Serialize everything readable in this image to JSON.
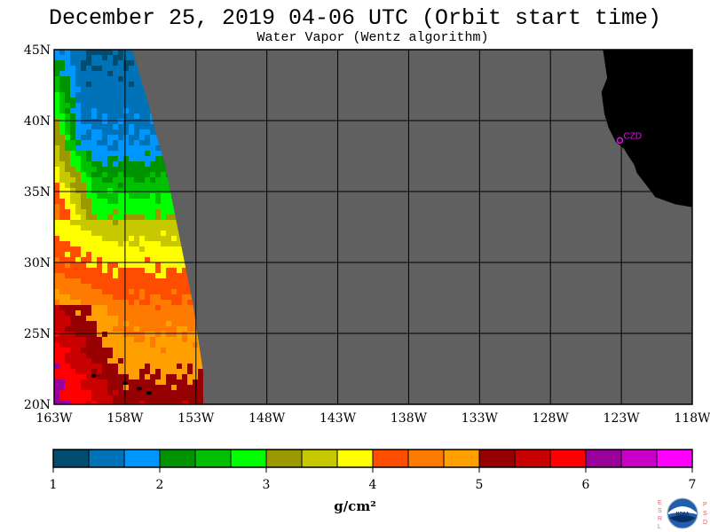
{
  "title": "December 25, 2019  04-06 UTC  (Orbit start time)",
  "subtitle": "Water Vapor (Wentz algorithm)",
  "station": {
    "label": "CZD",
    "color": "#ff00ff",
    "lon": -123.1,
    "lat": 38.6
  },
  "map": {
    "lon_range": [
      -163,
      -118
    ],
    "lat_range": [
      20,
      45
    ],
    "lat_ticks": [
      {
        "v": 45,
        "label": "45N"
      },
      {
        "v": 40,
        "label": "40N"
      },
      {
        "v": 35,
        "label": "35N"
      },
      {
        "v": 30,
        "label": "30N"
      },
      {
        "v": 25,
        "label": "25N"
      },
      {
        "v": 20,
        "label": "20N"
      }
    ],
    "lon_ticks": [
      {
        "v": -163,
        "label": "163W"
      },
      {
        "v": -158,
        "label": "158W"
      },
      {
        "v": -153,
        "label": "153W"
      },
      {
        "v": -148,
        "label": "148W"
      },
      {
        "v": -143,
        "label": "143W"
      },
      {
        "v": -138,
        "label": "138W"
      },
      {
        "v": -133,
        "label": "133W"
      },
      {
        "v": -128,
        "label": "128W"
      },
      {
        "v": -123,
        "label": "123W"
      },
      {
        "v": -118,
        "label": "118W"
      }
    ],
    "grid": true,
    "no_data_color": "#606060",
    "land_color": "#000000",
    "data_swath": [
      {
        "lat": 45,
        "lon_east": -157.5
      },
      {
        "lat": 43,
        "lon_east": -156.9
      },
      {
        "lat": 41,
        "lon_east": -156.3
      },
      {
        "lat": 39,
        "lon_east": -155.8
      },
      {
        "lat": 37,
        "lon_east": -155.2
      },
      {
        "lat": 35,
        "lon_east": -154.8
      },
      {
        "lat": 33,
        "lon_east": -154.4
      },
      {
        "lat": 31,
        "lon_east": -154.0
      },
      {
        "lat": 29,
        "lon_east": -153.6
      },
      {
        "lat": 27,
        "lon_east": -153.2
      },
      {
        "lat": 25,
        "lon_east": -152.9
      },
      {
        "lat": 23,
        "lon_east": -152.6
      },
      {
        "lat": 21,
        "lon_east": -152.3
      },
      {
        "lat": 20,
        "lon_east": -152.2
      }
    ],
    "water_vapor_bands_g_cm2": [
      {
        "lat": [
          43,
          45
        ],
        "lon": [
          -163,
          -162
        ],
        "v": 1.8
      },
      {
        "lat": [
          40,
          43
        ],
        "lon": [
          -163,
          -162
        ],
        "v": 2.3
      },
      {
        "lat": [
          37,
          40
        ],
        "lon": [
          -163,
          -161
        ],
        "v": 2.6
      },
      {
        "lat": [
          35,
          37
        ],
        "lon": [
          -163,
          -161
        ],
        "v": 3.5
      },
      {
        "lat": [
          20,
          35
        ],
        "lon": [
          -163,
          -161
        ],
        "v": 4.7
      }
    ]
  },
  "colorbar": {
    "colors": [
      "#004d70",
      "#0072b8",
      "#0096ff",
      "#009300",
      "#00c000",
      "#00ff00",
      "#9a9a00",
      "#c8c800",
      "#ffff00",
      "#ff4d00",
      "#ff7a00",
      "#ffa000",
      "#960000",
      "#c80000",
      "#ff0000",
      "#9a009a",
      "#c800c8",
      "#ff00ff"
    ],
    "ticks": [
      "1",
      "2",
      "3",
      "4",
      "5",
      "6",
      "7"
    ],
    "range": [
      1,
      7
    ]
  },
  "unit": "g/cm²",
  "logo": {
    "left_letters": [
      "E",
      "S",
      "R",
      "L"
    ],
    "right_letters": [
      "P",
      "S",
      "D"
    ],
    "center": "NOAA"
  }
}
